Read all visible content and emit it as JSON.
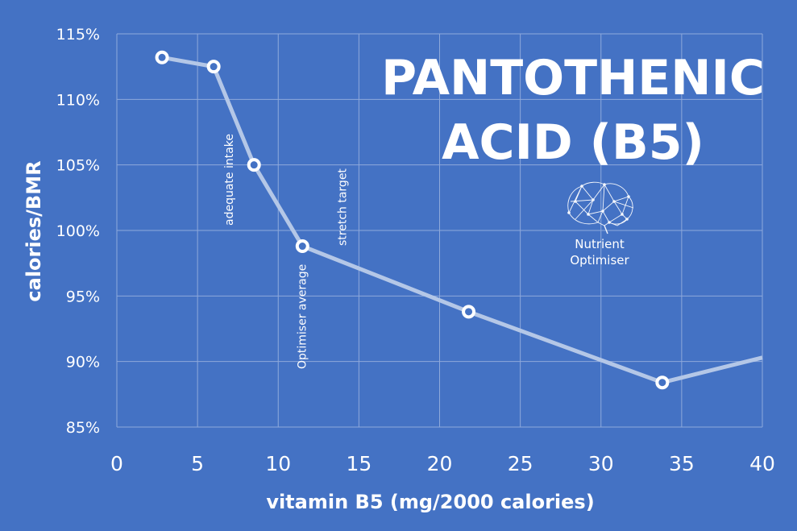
{
  "chart_data": {
    "type": "line",
    "title_lines": [
      "PANTOTHENIC",
      "ACID (B5)"
    ],
    "xlabel": "vitamin B5 (mg/2000 calories)",
    "ylabel": "calories/BMR",
    "xlim": [
      0,
      40
    ],
    "ylim": [
      85,
      115
    ],
    "xticks": [
      0,
      5,
      10,
      15,
      20,
      25,
      30,
      35,
      40
    ],
    "yticks": [
      85,
      90,
      95,
      100,
      105,
      110,
      115
    ],
    "ytick_labels": [
      "85%",
      "90%",
      "95%",
      "100%",
      "105%",
      "110%",
      "115%"
    ],
    "grid": true,
    "series": [
      {
        "x": [
          2.8,
          6.0,
          8.5,
          11.5,
          21.8,
          33.8,
          40.0
        ],
        "y": [
          113.2,
          112.5,
          105.0,
          98.8,
          93.8,
          88.4,
          90.3
        ],
        "markers": [
          true,
          true,
          true,
          true,
          true,
          true,
          false
        ]
      }
    ],
    "annotations": [
      {
        "text": "adequate intake",
        "x": 6.0
      },
      {
        "text": "Optimiser average",
        "x": 10.5
      },
      {
        "text": "stretch target",
        "x": 13.0
      }
    ],
    "colors": {
      "background": "#4472c4",
      "line": "#b4c7e7",
      "marker_fill": "#4472c4",
      "marker_stroke": "#ffffff"
    }
  },
  "brand": {
    "line1": "Nutrient",
    "line2": "Optimiser",
    "icon": "brain-network-icon"
  }
}
